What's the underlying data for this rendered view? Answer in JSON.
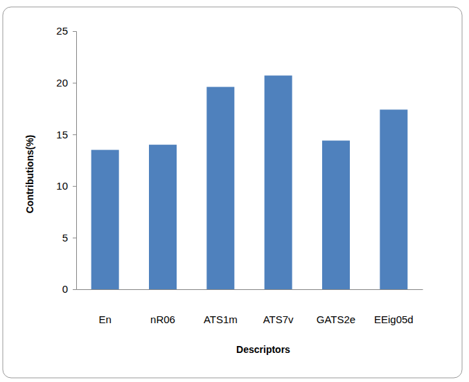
{
  "chart_data": {
    "type": "bar",
    "x_label": "Descriptors",
    "y_label": "Contributions(%)",
    "categories": [
      "En",
      "nR06",
      "ATS1m",
      "ATS7v",
      "GATS2e",
      "EEig05d"
    ],
    "values": [
      13.5,
      14.0,
      19.6,
      20.7,
      14.4,
      17.4
    ],
    "color": "#4f81bd",
    "ylim": [
      0,
      25
    ],
    "yticks": [
      0,
      5,
      10,
      15,
      20,
      25
    ],
    "grid": false
  }
}
